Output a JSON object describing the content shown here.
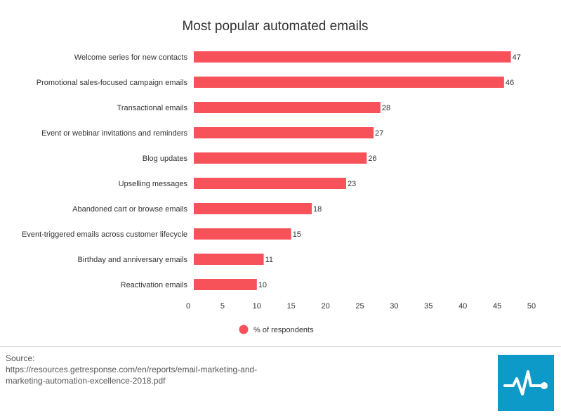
{
  "chart_data": {
    "type": "bar",
    "orientation": "horizontal",
    "title": "Most popular automated emails",
    "categories": [
      "Welcome series for new contacts",
      "Promotional sales-focused campaign emails",
      "Transactional emails",
      "Event or webinar invitations and reminders",
      "Blog updates",
      "Upselling messages",
      "Abandoned cart or browse emails",
      "Event-triggered emails across customer lifecycle",
      "Birthday and anniversary emails",
      "Reactivation emails"
    ],
    "series": [
      {
        "name": "% of respondents",
        "values": [
          47,
          46,
          28,
          27,
          26,
          23,
          18,
          15,
          11,
          10
        ],
        "color": "#f7525a"
      }
    ],
    "value_labels": [
      "47",
      "46",
      "28",
      "27",
      "26",
      "23",
      "18",
      "15",
      "11",
      "10"
    ],
    "xlim": [
      0,
      50
    ],
    "xticks": [
      "0",
      "5",
      "10",
      "15",
      "20",
      "25",
      "30",
      "35",
      "40",
      "45",
      "50"
    ],
    "grid": false,
    "legend_position": "bottom-center"
  },
  "source": {
    "text": "Source:\nhttps://resources.getresponse.com/en/reports/email-marketing-and-marketing-automation-excellence-2018.pdf"
  },
  "logo": {
    "icon": "pulse-line-icon",
    "background": "#0e9ac9",
    "foreground": "#ffffff"
  }
}
